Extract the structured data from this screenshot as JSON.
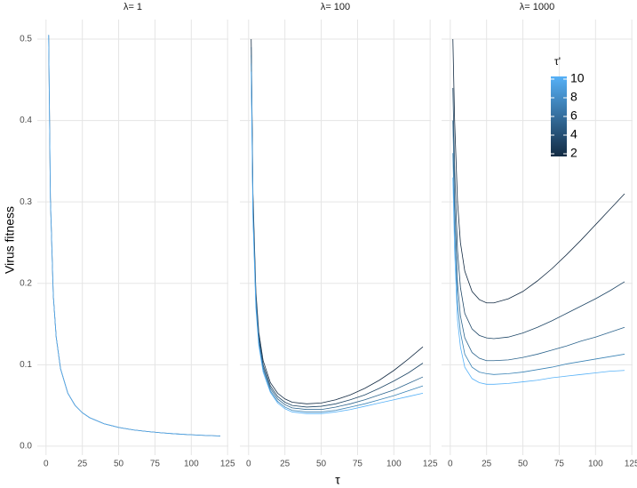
{
  "chart_data": {
    "type": "line",
    "ylabel": "Virus fitness",
    "xlabel": "τ",
    "xlim": [
      -6,
      125.5
    ],
    "xticks": [
      0,
      25,
      50,
      75,
      100,
      125
    ],
    "ylim": [
      -0.011,
      0.524
    ],
    "yticks": [
      {
        "value": 0,
        "label": "0.0"
      },
      0.1,
      0.2,
      0.3,
      0.4,
      0.5
    ],
    "grid": true,
    "legend": {
      "title": "τ'",
      "lim": [
        2,
        10
      ],
      "ticks": [
        2,
        4,
        6,
        8,
        10
      ],
      "colors": [
        "#132b43",
        "#56b1f7"
      ],
      "position": "top-right"
    },
    "x": [
      1.8,
      3,
      5,
      7,
      10,
      15,
      20,
      25,
      30,
      40,
      50,
      60,
      70,
      80,
      90,
      100,
      110,
      120
    ],
    "panels": [
      {
        "title": "λ= 1",
        "series": [
          {
            "color": "#132b43",
            "values": [
              0.505,
              0.305,
              0.185,
              0.134,
              0.095,
              0.065,
              0.05,
              0.041,
              0.035,
              0.0275,
              0.023,
              0.02,
              0.0179,
              0.0163,
              0.015,
              0.014,
              0.0132,
              0.0125
            ]
          },
          {
            "color": "#56b1f7",
            "values": [
              0.505,
              0.305,
              0.185,
              0.134,
              0.095,
              0.065,
              0.05,
              0.041,
              0.035,
              0.0275,
              0.023,
              0.02,
              0.0179,
              0.0163,
              0.015,
              0.014,
              0.0132,
              0.0125
            ]
          }
        ]
      },
      {
        "title": "λ= 100",
        "series": [
          {
            "color": "#132b43",
            "values": [
              0.5,
              0.31,
              0.19,
              0.14,
              0.105,
              0.078,
              0.065,
              0.058,
              0.054,
              0.052,
              0.053,
              0.057,
              0.063,
              0.071,
              0.081,
              0.093,
              0.107,
              0.122
            ]
          },
          {
            "color": "#1f4767",
            "values": [
              0.49,
              0.3,
              0.185,
              0.135,
              0.1,
              0.074,
              0.061,
              0.054,
              0.05,
              0.048,
              0.049,
              0.052,
              0.057,
              0.063,
              0.071,
              0.08,
              0.09,
              0.102
            ]
          },
          {
            "color": "#2c648d",
            "values": [
              0.48,
              0.29,
              0.18,
              0.13,
              0.097,
              0.071,
              0.058,
              0.051,
              0.047,
              0.045,
              0.045,
              0.048,
              0.052,
              0.057,
              0.063,
              0.069,
              0.077,
              0.085
            ]
          },
          {
            "color": "#3a83b5",
            "values": [
              0.47,
              0.285,
              0.175,
              0.127,
              0.094,
              0.068,
              0.055,
              0.048,
              0.044,
              0.042,
              0.042,
              0.044,
              0.048,
              0.052,
              0.057,
              0.062,
              0.068,
              0.074
            ]
          },
          {
            "color": "#56b1f7",
            "values": [
              0.46,
              0.28,
              0.17,
              0.124,
              0.091,
              0.066,
              0.053,
              0.046,
              0.042,
              0.04,
              0.04,
              0.042,
              0.045,
              0.049,
              0.053,
              0.057,
              0.061,
              0.065
            ]
          }
        ]
      },
      {
        "title": "λ= 1000",
        "series": [
          {
            "color": "#132b43",
            "values": [
              0.5,
              0.4,
              0.3,
              0.25,
              0.215,
              0.19,
              0.18,
              0.176,
              0.176,
              0.181,
              0.19,
              0.203,
              0.218,
              0.235,
              0.253,
              0.272,
              0.291,
              0.31
            ]
          },
          {
            "color": "#1f4767",
            "values": [
              0.44,
              0.34,
              0.24,
              0.195,
              0.163,
              0.144,
              0.136,
              0.133,
              0.132,
              0.134,
              0.139,
              0.146,
              0.154,
              0.163,
              0.172,
              0.181,
              0.191,
              0.202
            ]
          },
          {
            "color": "#2c648d",
            "values": [
              0.4,
              0.3,
              0.2,
              0.16,
              0.133,
              0.115,
              0.108,
              0.105,
              0.105,
              0.106,
              0.109,
              0.113,
              0.118,
              0.123,
              0.129,
              0.134,
              0.14,
              0.146
            ]
          },
          {
            "color": "#3a83b5",
            "values": [
              0.36,
              0.27,
              0.175,
              0.14,
              0.113,
              0.097,
              0.091,
              0.089,
              0.088,
              0.089,
              0.091,
              0.094,
              0.097,
              0.101,
              0.104,
              0.107,
              0.11,
              0.113
            ]
          },
          {
            "color": "#56b1f7",
            "values": [
              0.33,
              0.24,
              0.155,
              0.122,
              0.097,
              0.083,
              0.078,
              0.076,
              0.076,
              0.077,
              0.079,
              0.081,
              0.084,
              0.086,
              0.088,
              0.09,
              0.092,
              0.093
            ]
          }
        ]
      }
    ]
  }
}
